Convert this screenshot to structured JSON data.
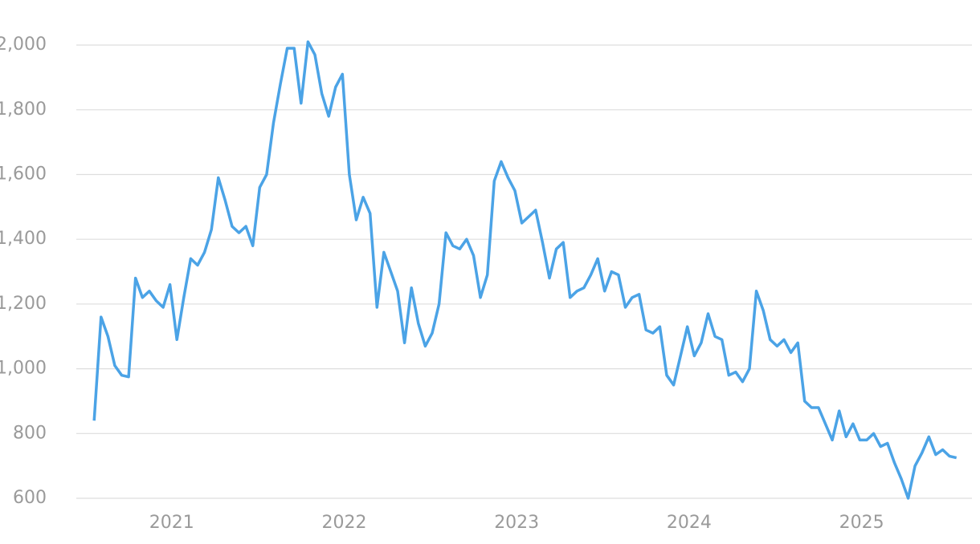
{
  "chart_data": {
    "type": "line",
    "x": [
      2020.55,
      2020.59,
      2020.63,
      2020.67,
      2020.71,
      2020.75,
      2020.79,
      2020.83,
      2020.87,
      2020.91,
      2020.95,
      2020.99,
      2021.03,
      2021.07,
      2021.11,
      2021.15,
      2021.19,
      2021.23,
      2021.27,
      2021.31,
      2021.35,
      2021.39,
      2021.43,
      2021.47,
      2021.51,
      2021.55,
      2021.59,
      2021.63,
      2021.67,
      2021.71,
      2021.75,
      2021.79,
      2021.83,
      2021.87,
      2021.91,
      2021.95,
      2021.99,
      2022.03,
      2022.07,
      2022.11,
      2022.15,
      2022.19,
      2022.23,
      2022.27,
      2022.31,
      2022.35,
      2022.39,
      2022.43,
      2022.47,
      2022.51,
      2022.55,
      2022.59,
      2022.63,
      2022.67,
      2022.71,
      2022.75,
      2022.79,
      2022.83,
      2022.87,
      2022.91,
      2022.95,
      2022.99,
      2023.03,
      2023.07,
      2023.11,
      2023.15,
      2023.19,
      2023.23,
      2023.27,
      2023.31,
      2023.35,
      2023.39,
      2023.43,
      2023.47,
      2023.51,
      2023.55,
      2023.59,
      2023.63,
      2023.67,
      2023.71,
      2023.75,
      2023.79,
      2023.83,
      2023.87,
      2023.91,
      2023.95,
      2023.99,
      2024.03,
      2024.07,
      2024.11,
      2024.15,
      2024.19,
      2024.23,
      2024.27,
      2024.31,
      2024.35,
      2024.39,
      2024.43,
      2024.47,
      2024.51,
      2024.55,
      2024.59,
      2024.63,
      2024.67,
      2024.71,
      2024.75,
      2024.79,
      2024.83,
      2024.87,
      2024.91,
      2024.95,
      2024.99,
      2025.03,
      2025.07,
      2025.11,
      2025.15,
      2025.19,
      2025.23,
      2025.27,
      2025.31,
      2025.35,
      2025.39,
      2025.43,
      2025.47,
      2025.51,
      2025.55
    ],
    "series": [
      {
        "color": "#4ba3e6",
        "values": [
          840,
          1160,
          1100,
          1010,
          980,
          975,
          1280,
          1220,
          1240,
          1210,
          1190,
          1260,
          1090,
          1220,
          1340,
          1320,
          1360,
          1430,
          1590,
          1520,
          1440,
          1420,
          1440,
          1380,
          1560,
          1600,
          1760,
          1880,
          1990,
          1990,
          1820,
          2010,
          1970,
          1850,
          1780,
          1870,
          1910,
          1600,
          1460,
          1530,
          1480,
          1190,
          1360,
          1300,
          1240,
          1080,
          1250,
          1140,
          1070,
          1110,
          1200,
          1420,
          1380,
          1370,
          1400,
          1350,
          1220,
          1290,
          1580,
          1640,
          1590,
          1550,
          1450,
          1470,
          1490,
          1390,
          1280,
          1370,
          1390,
          1220,
          1240,
          1250,
          1290,
          1340,
          1240,
          1300,
          1290,
          1190,
          1220,
          1230,
          1120,
          1110,
          1130,
          980,
          950,
          1040,
          1130,
          1040,
          1080,
          1170,
          1100,
          1090,
          980,
          990,
          960,
          1000,
          1240,
          1180,
          1090,
          1070,
          1090,
          1050,
          1080,
          900,
          880,
          880,
          830,
          780,
          870,
          790,
          830,
          780,
          780,
          800,
          760,
          770,
          710,
          660,
          600,
          700,
          740,
          790,
          735,
          750,
          730,
          725
        ]
      }
    ],
    "xlim": [
      2020.47,
      2025.64
    ],
    "xticks": [
      2021,
      2022,
      2023,
      2024,
      2025
    ],
    "ylim": [
      553,
      2139
    ],
    "yticks": [
      600,
      800,
      {
        "value": 1000,
        "label": "1,000"
      },
      {
        "value": 1200,
        "label": "1,200"
      },
      {
        "value": 1400,
        "label": "1,400"
      },
      {
        "value": 1600,
        "label": "1,600"
      },
      {
        "value": 1800,
        "label": "1,800"
      },
      {
        "value": 2000,
        "label": "2,000"
      }
    ],
    "grid": true
  }
}
